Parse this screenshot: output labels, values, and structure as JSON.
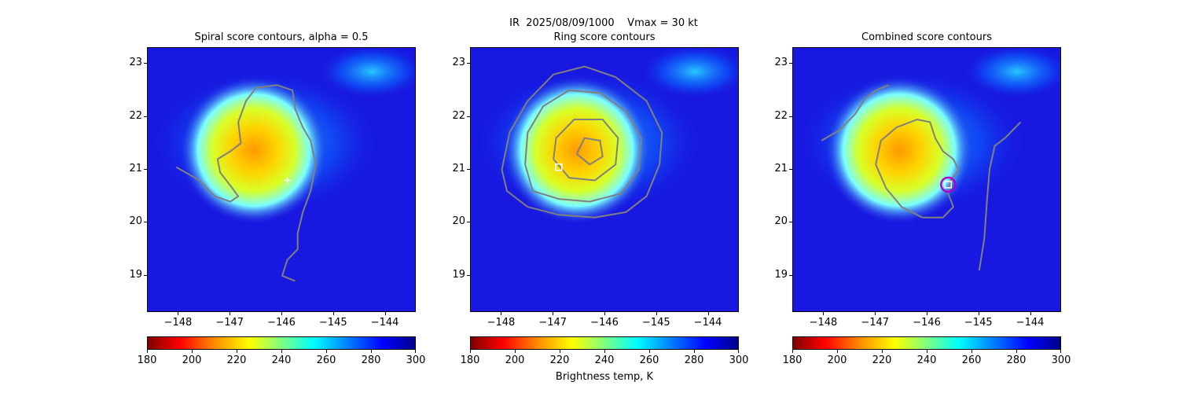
{
  "suptitle": "IR  2025/08/09/1000    Vmax = 30 kt",
  "chart_data": [
    {
      "type": "heatmap",
      "title": "Spiral score contours, alpha =  0.5",
      "xlim": [
        -148.6,
        -143.4
      ],
      "ylim": [
        18.3,
        23.3
      ],
      "xticks": [
        -148,
        -147,
        -146,
        -145,
        -144
      ],
      "yticks": [
        19,
        20,
        21,
        22,
        23
      ],
      "xtick_labels": [
        "−148",
        "−147",
        "−146",
        "−145",
        "−144"
      ],
      "ytick_labels": [
        "19",
        "20",
        "21",
        "22",
        "23"
      ],
      "colorbar": {
        "min": 180,
        "max": 300,
        "ticks": [
          180,
          200,
          220,
          240,
          260,
          280,
          300
        ],
        "colormap": "jet_r",
        "label": ""
      },
      "center_marker": {
        "lon": -145.9,
        "lat": 20.8,
        "style": "plus"
      },
      "contours": [
        [
          [
            -148.05,
            21.05
          ],
          [
            -147.6,
            20.8
          ],
          [
            -147.3,
            20.5
          ],
          [
            -147.0,
            20.4
          ],
          [
            -146.85,
            20.5
          ],
          [
            -147.0,
            20.7
          ],
          [
            -147.2,
            20.95
          ],
          [
            -147.25,
            21.2
          ],
          [
            -147.0,
            21.35
          ],
          [
            -146.8,
            21.5
          ],
          [
            -146.85,
            21.9
          ],
          [
            -146.7,
            22.3
          ],
          [
            -146.5,
            22.55
          ],
          [
            -146.1,
            22.6
          ],
          [
            -145.8,
            22.5
          ],
          [
            -145.75,
            22.15
          ],
          [
            -145.6,
            21.8
          ],
          [
            -145.45,
            21.55
          ],
          [
            -145.35,
            21.1
          ],
          [
            -145.45,
            20.6
          ],
          [
            -145.6,
            20.2
          ],
          [
            -145.7,
            19.8
          ],
          [
            -145.7,
            19.5
          ],
          [
            -145.9,
            19.3
          ],
          [
            -146.0,
            19.0
          ],
          [
            -145.75,
            18.9
          ]
        ]
      ]
    },
    {
      "type": "heatmap",
      "title": "Ring score contours",
      "xlim": [
        -148.6,
        -143.4
      ],
      "ylim": [
        18.3,
        23.3
      ],
      "xticks": [
        -148,
        -147,
        -146,
        -145,
        -144
      ],
      "yticks": [
        19,
        20,
        21,
        22,
        23
      ],
      "xtick_labels": [
        "−148",
        "−147",
        "−146",
        "−145",
        "−144"
      ],
      "ytick_labels": [
        "19",
        "20",
        "21",
        "22",
        "23"
      ],
      "colorbar": {
        "min": 180,
        "max": 300,
        "ticks": [
          180,
          200,
          220,
          240,
          260,
          280,
          300
        ],
        "colormap": "jet_r",
        "label": "Brightness temp, K"
      },
      "center_marker": {
        "lon": -146.9,
        "lat": 21.05,
        "style": "square"
      },
      "contours": [
        [
          [
            -148.0,
            21.0
          ],
          [
            -147.9,
            20.6
          ],
          [
            -147.5,
            20.3
          ],
          [
            -146.9,
            20.15
          ],
          [
            -146.2,
            20.1
          ],
          [
            -145.6,
            20.2
          ],
          [
            -145.2,
            20.5
          ],
          [
            -144.95,
            21.1
          ],
          [
            -144.9,
            21.7
          ],
          [
            -145.2,
            22.3
          ],
          [
            -145.8,
            22.75
          ],
          [
            -146.4,
            22.95
          ],
          [
            -147.0,
            22.8
          ],
          [
            -147.5,
            22.3
          ],
          [
            -147.85,
            21.7
          ],
          [
            -148.0,
            21.0
          ]
        ],
        [
          [
            -147.55,
            21.1
          ],
          [
            -147.4,
            20.6
          ],
          [
            -146.9,
            20.45
          ],
          [
            -146.3,
            20.4
          ],
          [
            -145.7,
            20.55
          ],
          [
            -145.35,
            21.0
          ],
          [
            -145.3,
            21.6
          ],
          [
            -145.6,
            22.1
          ],
          [
            -146.1,
            22.45
          ],
          [
            -146.7,
            22.5
          ],
          [
            -147.2,
            22.2
          ],
          [
            -147.5,
            21.7
          ],
          [
            -147.55,
            21.1
          ]
        ],
        [
          [
            -147.0,
            21.2
          ],
          [
            -146.7,
            20.85
          ],
          [
            -146.2,
            20.8
          ],
          [
            -145.8,
            21.1
          ],
          [
            -145.75,
            21.6
          ],
          [
            -146.05,
            21.95
          ],
          [
            -146.6,
            21.95
          ],
          [
            -146.95,
            21.6
          ],
          [
            -147.0,
            21.2
          ]
        ],
        [
          [
            -146.55,
            21.3
          ],
          [
            -146.3,
            21.1
          ],
          [
            -146.05,
            21.25
          ],
          [
            -146.1,
            21.55
          ],
          [
            -146.4,
            21.6
          ],
          [
            -146.55,
            21.3
          ]
        ]
      ]
    },
    {
      "type": "heatmap",
      "title": "Combined score contours",
      "xlim": [
        -148.6,
        -143.4
      ],
      "ylim": [
        18.3,
        23.3
      ],
      "xticks": [
        -148,
        -147,
        -146,
        -145,
        -144
      ],
      "yticks": [
        19,
        20,
        21,
        22,
        23
      ],
      "xtick_labels": [
        "−148",
        "−147",
        "−146",
        "−145",
        "−144"
      ],
      "ytick_labels": [
        "19",
        "20",
        "21",
        "22",
        "23"
      ],
      "colorbar": {
        "min": 180,
        "max": 300,
        "ticks": [
          180,
          200,
          220,
          240,
          260,
          280,
          300
        ],
        "colormap": "jet_r",
        "label": ""
      },
      "center_marker": {
        "lon": -145.6,
        "lat": 20.72,
        "style": "square-circle"
      },
      "contours": [
        [
          [
            -148.05,
            21.55
          ],
          [
            -147.7,
            21.75
          ],
          [
            -147.4,
            22.05
          ],
          [
            -147.2,
            22.35
          ],
          [
            -147.0,
            22.5
          ],
          [
            -146.75,
            22.6
          ]
        ],
        [
          [
            -145.4,
            21.0
          ],
          [
            -145.5,
            21.2
          ],
          [
            -145.7,
            21.35
          ],
          [
            -145.85,
            21.6
          ],
          [
            -145.95,
            21.9
          ],
          [
            -146.2,
            21.95
          ],
          [
            -146.6,
            21.8
          ],
          [
            -146.9,
            21.55
          ],
          [
            -147.0,
            21.1
          ],
          [
            -146.8,
            20.65
          ],
          [
            -146.5,
            20.3
          ],
          [
            -146.1,
            20.1
          ],
          [
            -145.7,
            20.1
          ],
          [
            -145.5,
            20.3
          ],
          [
            -145.6,
            20.55
          ],
          [
            -145.55,
            20.8
          ],
          [
            -145.4,
            21.0
          ]
        ],
        [
          [
            -144.2,
            21.9
          ],
          [
            -144.5,
            21.6
          ],
          [
            -144.7,
            21.45
          ],
          [
            -144.8,
            21.0
          ],
          [
            -144.85,
            20.4
          ],
          [
            -144.9,
            19.7
          ],
          [
            -145.0,
            19.1
          ]
        ]
      ]
    }
  ]
}
